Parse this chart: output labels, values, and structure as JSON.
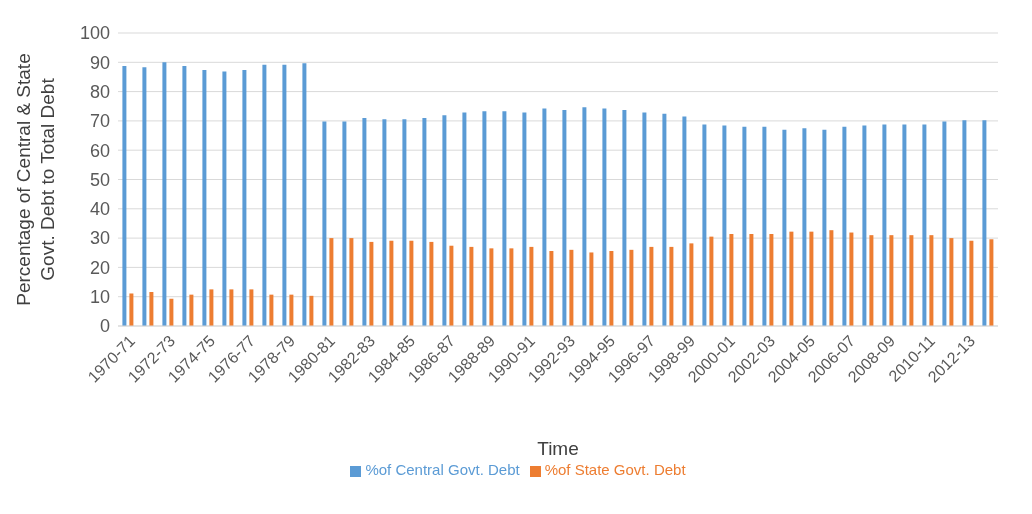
{
  "chart_data": {
    "type": "bar",
    "xlabel": "Time",
    "ylabel": "Percentage of Central & State Govt. Debt to Total Debt",
    "categories": [
      "1970-71",
      null,
      "1972-73",
      null,
      "1974-75",
      null,
      "1976-77",
      null,
      "1978-79",
      null,
      "1980-81",
      null,
      "1982-83",
      null,
      "1984-85",
      null,
      "1986-87",
      null,
      "1988-89",
      null,
      "1990-91",
      null,
      "1992-93",
      null,
      "1994-95",
      null,
      "1996-97",
      null,
      "1998-99",
      null,
      "2000-01",
      null,
      "2002-03",
      null,
      "2004-05",
      null,
      "2006-07",
      null,
      "2008-09",
      null,
      "2010-11",
      null,
      "2012-13",
      null
    ],
    "series": [
      {
        "name": "%of Central Govt. Debt",
        "color": "#5b9bd5",
        "values": [
          88.7,
          88.3,
          90.0,
          88.7,
          87.4,
          86.9,
          87.4,
          89.2,
          89.2,
          89.7,
          69.8,
          69.8,
          71.0,
          70.6,
          70.6,
          71.0,
          71.9,
          72.9,
          73.3,
          73.3,
          72.9,
          74.2,
          73.7,
          74.7,
          74.2,
          73.7,
          72.9,
          72.4,
          71.5,
          68.8,
          68.4,
          68.0,
          68.0,
          67.0,
          67.5,
          67.0,
          68.0,
          68.4,
          68.8,
          68.8,
          68.8,
          69.8,
          70.2,
          70.2
        ]
      },
      {
        "name": "%of State Govt. Debt",
        "color": "#ed7d31",
        "values": [
          11.1,
          11.6,
          9.3,
          10.7,
          12.5,
          12.5,
          12.5,
          10.7,
          10.7,
          10.3,
          30.0,
          30.0,
          28.7,
          29.1,
          29.1,
          28.7,
          27.4,
          27.0,
          26.5,
          26.5,
          27.0,
          25.6,
          26.0,
          25.1,
          25.6,
          26.0,
          27.0,
          27.0,
          28.2,
          30.5,
          31.4,
          31.4,
          31.4,
          32.2,
          32.2,
          32.7,
          31.9,
          31.0,
          31.0,
          31.0,
          31.0,
          30.0,
          29.1,
          29.6
        ]
      }
    ],
    "ylim": [
      0,
      100
    ],
    "yticks": [
      0,
      10,
      20,
      30,
      40,
      50,
      60,
      70,
      80,
      90,
      100
    ],
    "grid": "y",
    "legend": "bottom"
  }
}
